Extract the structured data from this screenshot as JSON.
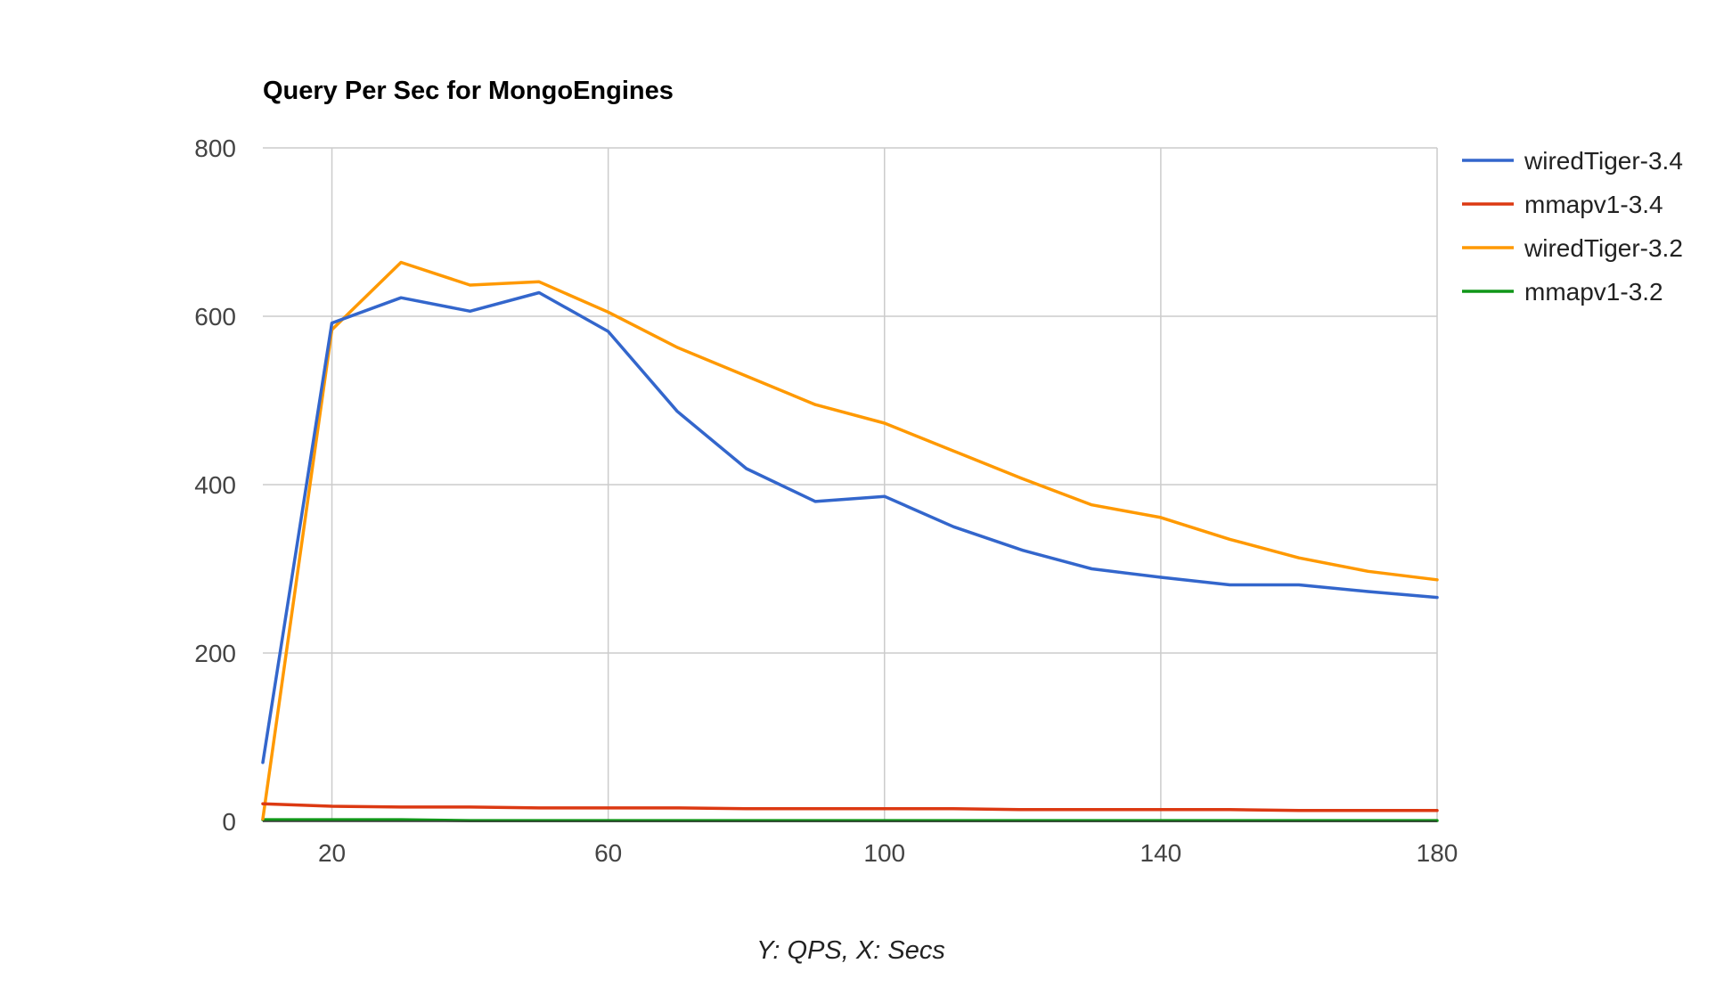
{
  "chart_data": {
    "type": "line",
    "title": "Query Per Sec for MongoEngines",
    "xlabel": "Y: QPS, X: Secs",
    "ylabel": "",
    "xlim": [
      10,
      180
    ],
    "ylim": [
      0,
      800
    ],
    "x_ticks": [
      20,
      60,
      100,
      140,
      180
    ],
    "y_ticks": [
      0,
      200,
      400,
      600,
      800
    ],
    "x_grid": true,
    "y_grid": true,
    "legend_position": "right",
    "x": [
      10,
      20,
      30,
      40,
      50,
      60,
      70,
      80,
      90,
      100,
      110,
      120,
      130,
      140,
      150,
      160,
      170,
      180
    ],
    "series": [
      {
        "name": "wiredTiger-3.4",
        "color": "#3366cc",
        "values": [
          70,
          592,
          622,
          606,
          628,
          582,
          487,
          419,
          380,
          386,
          350,
          322,
          300,
          290,
          281,
          281,
          273,
          266
        ]
      },
      {
        "name": "mmapv1-3.4",
        "color": "#dc3912",
        "values": [
          21,
          18,
          17,
          17,
          16,
          16,
          16,
          15,
          15,
          15,
          15,
          14,
          14,
          14,
          14,
          13,
          13,
          13
        ]
      },
      {
        "name": "wiredTiger-3.2",
        "color": "#ff9900",
        "values": [
          3,
          584,
          664,
          637,
          641,
          605,
          563,
          529,
          495,
          473,
          440,
          407,
          376,
          361,
          335,
          313,
          297,
          287
        ]
      },
      {
        "name": "mmapv1-3.2",
        "color": "#109618",
        "values": [
          2,
          2,
          2,
          1,
          1,
          1,
          1,
          1,
          1,
          1,
          1,
          1,
          1,
          1,
          1,
          1,
          1,
          1
        ]
      }
    ]
  }
}
